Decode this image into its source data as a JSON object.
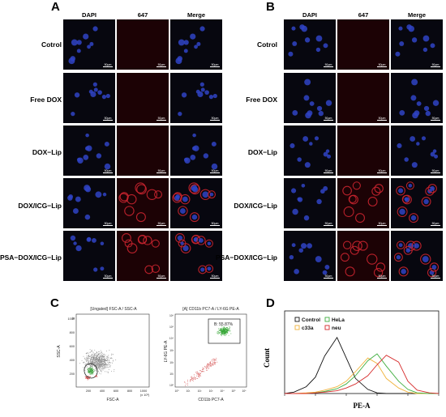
{
  "panels": {
    "A": "A",
    "B": "B",
    "C": "C",
    "D": "D"
  },
  "columns": [
    "DAPI",
    "647",
    "Merge"
  ],
  "rows": [
    "Cotrol",
    "Free DOX",
    "DOX−Lip",
    "DOX/ICG−Lip",
    "PSA−DOX/ICG−Lip"
  ],
  "scale_bar": "50μm",
  "flow_left": {
    "title": "[Ungated] FSC-A / SSC-A",
    "xlabel": "FSC-A",
    "ylabel": "SSC-A",
    "x_ticks": [
      "200",
      "400",
      "600",
      "800",
      "1000"
    ],
    "x_unit": "(x 10³)",
    "y_ticks": [
      "200",
      "400",
      "600",
      "800",
      "1000"
    ],
    "y_unit": "(x 10³)",
    "gate": "A"
  },
  "flow_right": {
    "title": "[A] CD11b PC7-A / LY-6G PE-A",
    "xlabel": "CD11b PC7-A",
    "ylabel": "LY-6G PE-A",
    "x_ticks": [
      "10⁰",
      "10¹",
      "10²",
      "10³",
      "10⁴",
      "10⁵",
      "10⁶"
    ],
    "y_ticks": [
      "10⁰",
      "10¹",
      "10²",
      "10³",
      "10⁴",
      "10⁵",
      "10⁶"
    ],
    "gate_label": "B: 55.87%"
  },
  "histogram": {
    "ylabel": "Count",
    "xlabel": "PE-A",
    "legend": [
      {
        "name": "Control",
        "color": "#111111"
      },
      {
        "name": "HeLa",
        "color": "#3fae3f"
      },
      {
        "name": "c33a",
        "color": "#f0b23a"
      },
      {
        "name": "neu",
        "color": "#d62b2b"
      }
    ]
  },
  "chart_data": {
    "type": "area",
    "xlabel": "PE-A",
    "ylabel": "Count",
    "x_scale": "log",
    "x": [
      1,
      2,
      5,
      10,
      20,
      50,
      100,
      200,
      500,
      1000,
      2000,
      5000,
      10000,
      20000,
      50000,
      100000
    ],
    "series": [
      {
        "name": "Control",
        "values": [
          0,
          2,
          10,
          24,
          55,
          82,
          52,
          22,
          6,
          1,
          0,
          0,
          0,
          0,
          0,
          0
        ]
      },
      {
        "name": "c33a",
        "values": [
          0,
          0,
          1,
          2,
          5,
          10,
          18,
          32,
          52,
          44,
          22,
          8,
          2,
          0,
          0,
          0
        ]
      },
      {
        "name": "HeLa",
        "values": [
          0,
          0,
          0,
          1,
          3,
          7,
          14,
          26,
          48,
          58,
          40,
          18,
          6,
          1,
          0,
          0
        ]
      },
      {
        "name": "neu",
        "values": [
          0,
          0,
          0,
          1,
          2,
          4,
          8,
          14,
          26,
          42,
          56,
          46,
          18,
          5,
          1,
          0
        ]
      }
    ]
  }
}
